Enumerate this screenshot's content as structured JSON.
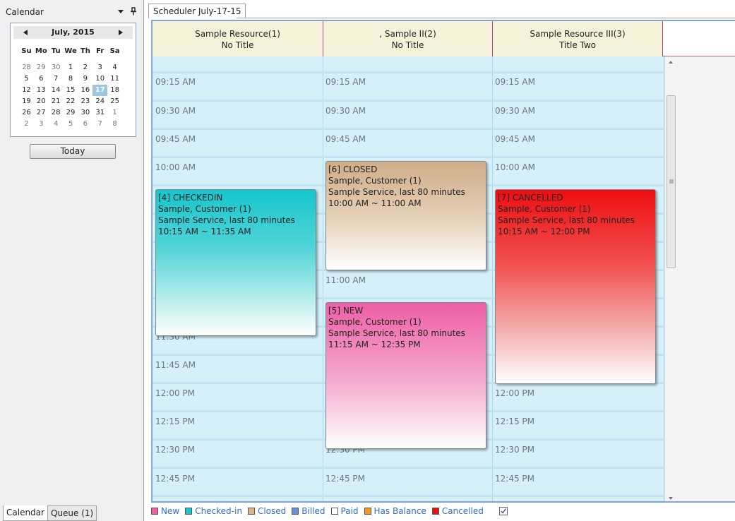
{
  "left_panel": {
    "title": "Calendar",
    "mini_calendar": {
      "month_label": "July, 2015",
      "dow": [
        "Su",
        "Mo",
        "Tu",
        "We",
        "Th",
        "Fr",
        "Sa"
      ],
      "weeks": [
        [
          {
            "d": "28",
            "o": true
          },
          {
            "d": "29",
            "o": true
          },
          {
            "d": "30",
            "o": true
          },
          {
            "d": "1"
          },
          {
            "d": "2"
          },
          {
            "d": "3"
          },
          {
            "d": "4"
          }
        ],
        [
          {
            "d": "5"
          },
          {
            "d": "6"
          },
          {
            "d": "7"
          },
          {
            "d": "8"
          },
          {
            "d": "9"
          },
          {
            "d": "10"
          },
          {
            "d": "11"
          }
        ],
        [
          {
            "d": "12"
          },
          {
            "d": "13"
          },
          {
            "d": "14"
          },
          {
            "d": "15"
          },
          {
            "d": "16"
          },
          {
            "d": "17",
            "t": true
          },
          {
            "d": "18"
          }
        ],
        [
          {
            "d": "19"
          },
          {
            "d": "20"
          },
          {
            "d": "21"
          },
          {
            "d": "22"
          },
          {
            "d": "23"
          },
          {
            "d": "24"
          },
          {
            "d": "25"
          }
        ],
        [
          {
            "d": "26"
          },
          {
            "d": "27"
          },
          {
            "d": "28"
          },
          {
            "d": "29"
          },
          {
            "d": "30"
          },
          {
            "d": "31"
          },
          {
            "d": "1",
            "o": true
          }
        ],
        [
          {
            "d": "2",
            "o": true
          },
          {
            "d": "3",
            "o": true
          },
          {
            "d": "4",
            "o": true
          },
          {
            "d": "5",
            "o": true
          },
          {
            "d": "6",
            "o": true
          },
          {
            "d": "7",
            "o": true
          },
          {
            "d": "8",
            "o": true
          }
        ]
      ]
    },
    "today_button": "Today",
    "bottom_tabs": [
      "Calendar",
      "Queue (1)"
    ]
  },
  "scheduler": {
    "tab_title": "Scheduler July-17-15",
    "resources": [
      {
        "name": "Sample Resource(1)",
        "subtitle": "No Title"
      },
      {
        "name": ", Sample II(2)",
        "subtitle": "No Title"
      },
      {
        "name": "Sample Resource III(3)",
        "subtitle": "Title Two"
      }
    ],
    "col0_times": [
      "09:15 AM",
      "09:30 AM",
      "09:45 AM",
      "10:00 AM",
      "11:30 AM",
      "11:45 AM",
      "12:00 PM",
      "12:15 PM",
      "12:30 PM",
      "12:45 PM"
    ],
    "col1_times": [
      "09:15 AM",
      "09:30 AM",
      "09:45 AM",
      "11:00 AM",
      "12:30 PM",
      "12:45 PM"
    ],
    "col2_times": [
      "09:15 AM",
      "09:30 AM",
      "09:45 AM",
      "10:00 AM",
      "12:00 PM",
      "12:15 PM",
      "12:30 PM",
      "12:45 PM"
    ],
    "appointments": {
      "a4": {
        "status": "[4] CHECKEDIN",
        "customer": "Sample, Customer (1)",
        "service": "Sample Service, last 80 minutes",
        "time": "10:15 AM ~ 11:35 AM"
      },
      "a6": {
        "status": "[6] CLOSED",
        "customer": "Sample, Customer (1)",
        "service": "Sample Service, last 80 minutes",
        "time": "10:00 AM ~ 11:00 AM"
      },
      "a5": {
        "status": "[5] NEW",
        "customer": "Sample, Customer (1)",
        "service": "Sample Service, last 80 minutes",
        "time": "11:15 AM ~ 12:35 PM"
      },
      "a7": {
        "status": "[7] CANCELLED",
        "customer": "Sample, Customer (1)",
        "service": "Sample Service, last 80 minutes",
        "time": "10:15 AM ~ 12:00 PM"
      }
    },
    "legend": [
      {
        "label": "New",
        "color": "#ee5fa7"
      },
      {
        "label": "Checked-in",
        "color": "#16c6cb"
      },
      {
        "label": "Closed",
        "color": "#d9b48a"
      },
      {
        "label": "Billed",
        "color": "#6b8fd6"
      },
      {
        "label": "Paid",
        "color": "#ffffff"
      },
      {
        "label": "Has Balance",
        "color": "#f59a1c"
      },
      {
        "label": "Cancelled",
        "color": "#e81414"
      }
    ]
  }
}
